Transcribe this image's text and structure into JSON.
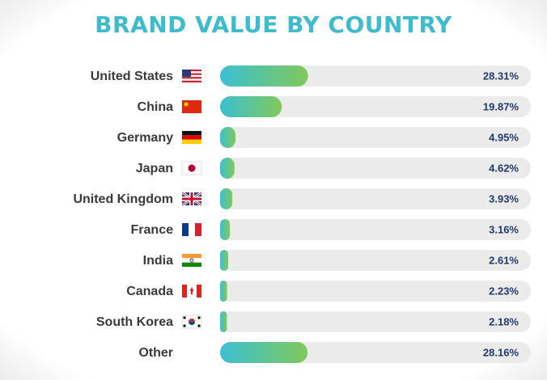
{
  "chart_data": {
    "type": "bar",
    "orientation": "horizontal",
    "title": "BRAND VALUE BY COUNTRY",
    "categories": [
      "United States",
      "China",
      "Germany",
      "Japan",
      "United Kingdom",
      "France",
      "India",
      "Canada",
      "South Korea",
      "Other"
    ],
    "values": [
      28.31,
      19.87,
      4.95,
      4.62,
      3.93,
      3.16,
      2.61,
      2.23,
      2.18,
      28.16
    ],
    "value_labels": [
      "28.31%",
      "19.87%",
      "4.95%",
      "4.62%",
      "3.93%",
      "3.16%",
      "2.61%",
      "2.23%",
      "2.18%",
      "28.16%"
    ],
    "xlim": [
      0,
      100
    ],
    "color_start": "#3cc0d2",
    "color_end": "#80c85a",
    "track_color": "#ebebeb"
  }
}
